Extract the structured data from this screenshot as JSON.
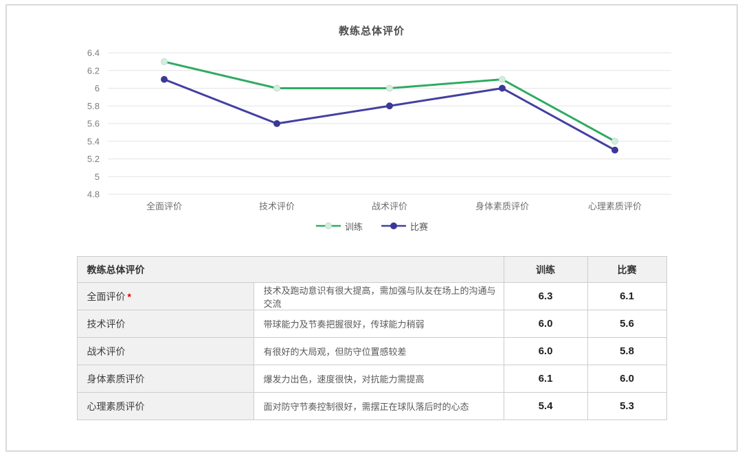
{
  "chart": {
    "title": "教练总体评价"
  },
  "chart_data": {
    "type": "line",
    "title": "教练总体评价",
    "categories": [
      "全面评价",
      "技术评价",
      "战术评价",
      "身体素质评价",
      "心理素质评价"
    ],
    "series": [
      {
        "name": "训练",
        "values": [
          6.3,
          6.0,
          6.0,
          6.1,
          5.4
        ],
        "color": "#2fab62",
        "marker_fill": "#d6ece0",
        "marker_stroke": "#b9e0cd"
      },
      {
        "name": "比赛",
        "values": [
          6.1,
          5.6,
          5.8,
          6.0,
          5.3
        ],
        "color": "#4340a0",
        "marker_fill": "#3b3896",
        "marker_stroke": "#3b3896"
      }
    ],
    "ylim": [
      4.8,
      6.4
    ],
    "ytick_step": 0.2,
    "yticks": [
      "6.4",
      "6.2",
      "6",
      "5.8",
      "5.6",
      "5.4",
      "5.2",
      "5",
      "4.8"
    ],
    "grid": true,
    "gridline_color": "#e3e3e3",
    "tick_label_color": "#7d7d7d",
    "category_label_color": "#6f6f6f",
    "legend_position": "bottom",
    "legend": [
      "训练",
      "比赛"
    ]
  },
  "table": {
    "header": {
      "title": "教练总体评价",
      "col_train": "训练",
      "col_match": "比赛"
    },
    "rows": [
      {
        "label": "全面评价",
        "required_mark": "*",
        "comment": "技术及跑动意识有很大提高，需加强与队友在场上的沟通与交流",
        "train": "6.3",
        "match": "6.1"
      },
      {
        "label": "技术评价",
        "comment": "带球能力及节奏把握很好，传球能力稍弱",
        "train": "6.0",
        "match": "5.6"
      },
      {
        "label": "战术评价",
        "comment": "有很好的大局观，但防守位置感较差",
        "train": "6.0",
        "match": "5.8"
      },
      {
        "label": "身体素质评价",
        "comment": "爆发力出色，速度很快，对抗能力需提高",
        "train": "6.1",
        "match": "6.0"
      },
      {
        "label": "心理素质评价",
        "comment": "面对防守节奏控制很好，需摆正在球队落后时的心态",
        "train": "5.4",
        "match": "5.3"
      }
    ]
  },
  "colors": {
    "card_border": "#d9d9d9",
    "table_border": "#cccccc",
    "table_shaded_bg": "#f1f1f1",
    "title_text": "#4d4d4d",
    "required_mark": "#e60000"
  }
}
